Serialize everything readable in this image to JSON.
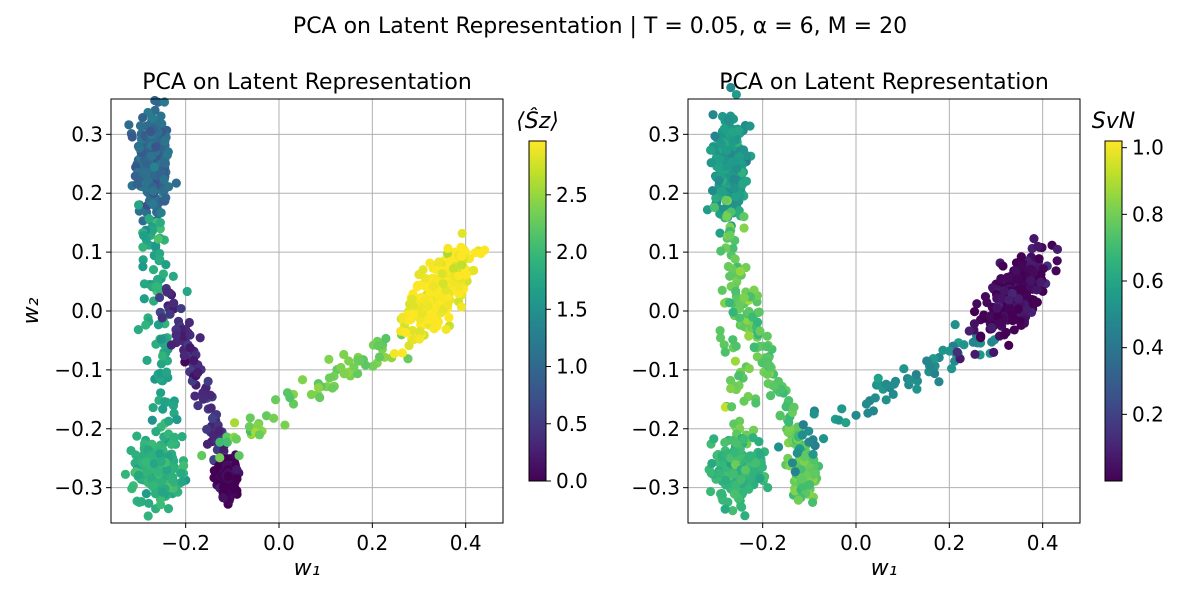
{
  "figure": {
    "suptitle": "PCA on Latent Representation | T = 0.05, α = 6, M = 20"
  },
  "chart_data": [
    {
      "type": "scatter",
      "title": "PCA on Latent Representation",
      "xlabel": "w₁",
      "ylabel": "w₂",
      "xlim": [
        -0.36,
        0.48
      ],
      "ylim": [
        -0.36,
        0.36
      ],
      "xticks": [
        -0.2,
        0.0,
        0.2,
        0.4
      ],
      "xtick_labels": [
        "−0.2",
        "0.0",
        "0.2",
        "0.4"
      ],
      "yticks": [
        -0.3,
        -0.2,
        -0.1,
        0.0,
        0.1,
        0.2,
        0.3
      ],
      "ytick_labels": [
        "−0.3",
        "−0.2",
        "−0.1",
        "0.0",
        "0.1",
        "0.2",
        "0.3"
      ],
      "grid": true,
      "colormap": "viridis",
      "colorbar": {
        "label": "⟨Ŝz⟩",
        "range": [
          0.0,
          2.97
        ],
        "ticks": [
          0.0,
          0.5,
          1.0,
          1.5,
          2.0,
          2.5
        ],
        "tick_labels": [
          "0.0",
          "0.5",
          "1.0",
          "1.5",
          "2.0",
          "2.5"
        ]
      },
      "clusters": [
        {
          "name": "upper-left",
          "center": [
            -0.27,
            0.25
          ],
          "spread": [
            0.018,
            0.045
          ],
          "n": 260,
          "value": 1.0
        },
        {
          "name": "left-stem",
          "from": [
            -0.27,
            0.17
          ],
          "to": [
            -0.24,
            -0.22
          ],
          "width": 0.018,
          "n": 90,
          "value": 1.8
        },
        {
          "name": "diagonal",
          "from": [
            -0.24,
            0.03
          ],
          "to": [
            -0.1,
            -0.29
          ],
          "width": 0.01,
          "n": 110,
          "value": 0.35
        },
        {
          "name": "lower-left",
          "center": [
            -0.26,
            -0.27
          ],
          "spread": [
            0.025,
            0.025
          ],
          "n": 220,
          "value": 1.9
        },
        {
          "name": "lower-middle",
          "center": [
            -0.11,
            -0.28
          ],
          "spread": [
            0.012,
            0.018
          ],
          "n": 110,
          "value": 0.0
        },
        {
          "name": "bridge",
          "from": [
            -0.15,
            -0.24
          ],
          "to": [
            0.28,
            -0.04
          ],
          "width": 0.015,
          "n": 70,
          "value": 2.3
        },
        {
          "name": "upper-right",
          "center": [
            0.34,
            0.03
          ],
          "spread": [
            0.035,
            0.025
          ],
          "n": 280,
          "value": 2.95
        }
      ]
    },
    {
      "type": "scatter",
      "title": "PCA on Latent Representation",
      "xlabel": "w₁",
      "ylabel": "",
      "xlim": [
        -0.36,
        0.48
      ],
      "ylim": [
        -0.36,
        0.36
      ],
      "xticks": [
        -0.2,
        0.0,
        0.2,
        0.4
      ],
      "xtick_labels": [
        "−0.2",
        "0.0",
        "0.2",
        "0.4"
      ],
      "yticks": [
        -0.3,
        -0.2,
        -0.1,
        0.0,
        0.1,
        0.2,
        0.3
      ],
      "ytick_labels": [
        "−0.3",
        "−0.2",
        "−0.1",
        "0.0",
        "0.1",
        "0.2",
        "0.3"
      ],
      "grid": true,
      "colormap": "viridis",
      "colorbar": {
        "label": "SvN",
        "range": [
          0.0,
          1.02
        ],
        "ticks": [
          0.2,
          0.4,
          0.6,
          0.8,
          1.0
        ],
        "tick_labels": [
          "0.2",
          "0.4",
          "0.6",
          "0.8",
          "1.0"
        ]
      },
      "clusters": [
        {
          "name": "upper-left",
          "center": [
            -0.27,
            0.25
          ],
          "spread": [
            0.018,
            0.045
          ],
          "n": 260,
          "value": 0.55
        },
        {
          "name": "left-stem",
          "from": [
            -0.27,
            0.17
          ],
          "to": [
            -0.24,
            -0.22
          ],
          "width": 0.018,
          "n": 90,
          "value": 0.78
        },
        {
          "name": "diagonal",
          "from": [
            -0.24,
            0.03
          ],
          "to": [
            -0.1,
            -0.29
          ],
          "width": 0.01,
          "n": 110,
          "value": 0.75
        },
        {
          "name": "lower-left",
          "center": [
            -0.26,
            -0.27
          ],
          "spread": [
            0.025,
            0.025
          ],
          "n": 220,
          "value": 0.68
        },
        {
          "name": "lower-middle",
          "center": [
            -0.11,
            -0.28
          ],
          "spread": [
            0.012,
            0.018
          ],
          "n": 110,
          "value": 0.76
        },
        {
          "name": "bridge",
          "from": [
            -0.15,
            -0.24
          ],
          "to": [
            0.28,
            -0.04
          ],
          "width": 0.015,
          "n": 70,
          "value": 0.5
        },
        {
          "name": "upper-right",
          "center": [
            0.34,
            0.03
          ],
          "spread": [
            0.035,
            0.025
          ],
          "n": 280,
          "value": 0.02
        }
      ]
    }
  ]
}
